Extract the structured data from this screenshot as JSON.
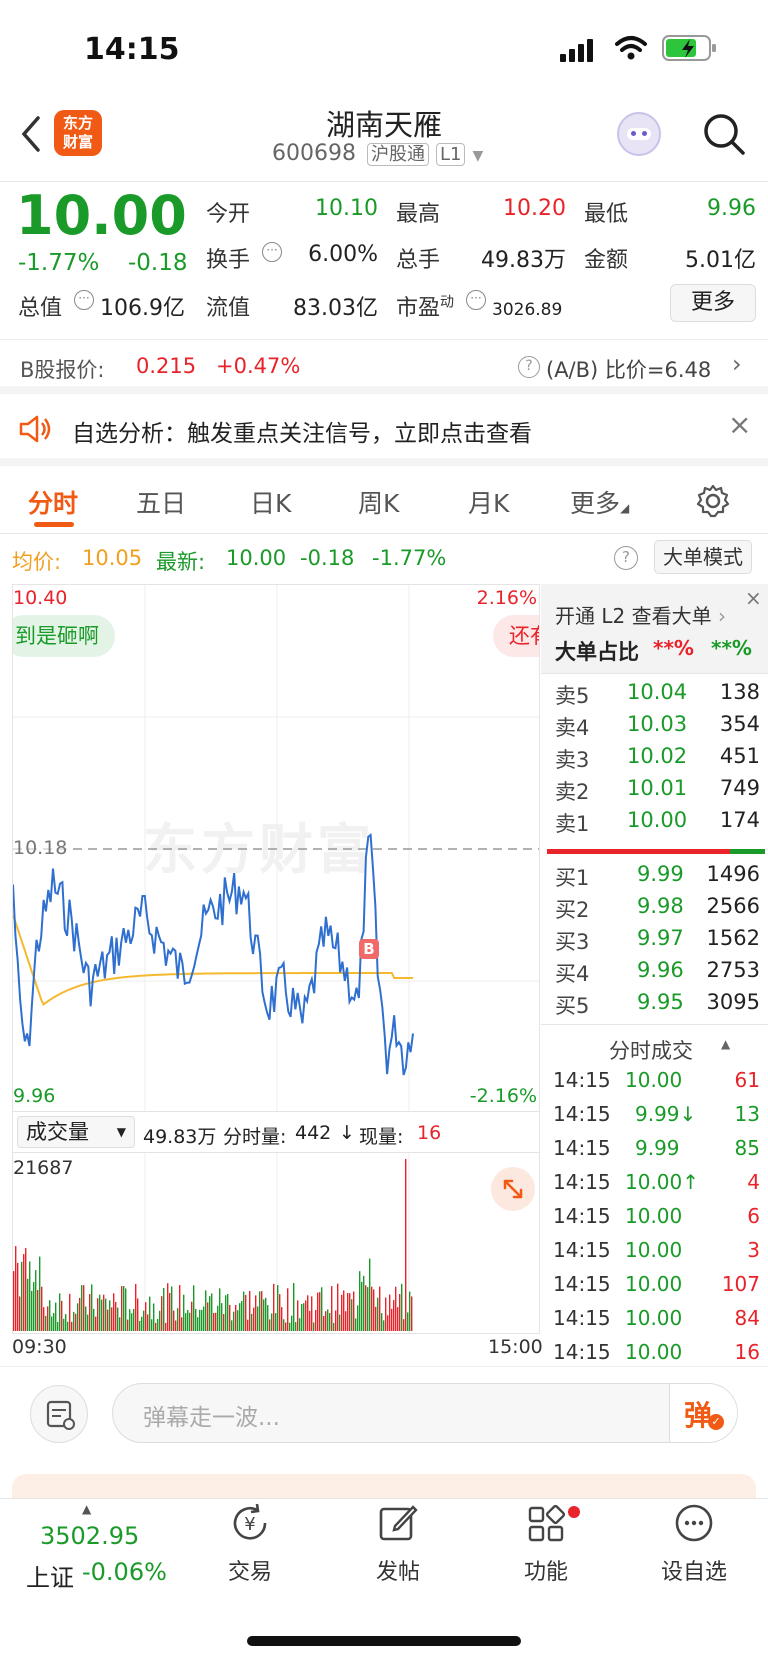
{
  "status": {
    "time": "14:15"
  },
  "header": {
    "title": "湖南天雁",
    "code": "600698",
    "tag": "沪股通",
    "level": "L1",
    "logo_line1": "东方",
    "logo_line2": "财富"
  },
  "quote": {
    "price": "10.00",
    "change_pct": "-1.77%",
    "change": "-0.18",
    "open_label": "今开",
    "open": "10.10",
    "high_label": "最高",
    "high": "10.20",
    "low_label": "最低",
    "low": "9.96",
    "turnover_label": "换手",
    "turnover": "6.00%",
    "volume_label": "总手",
    "volume": "49.83万",
    "amount_label": "金额",
    "amount": "5.01亿",
    "mktcap_label": "总值",
    "mktcap": "106.9亿",
    "float_label": "流值",
    "float": "83.03亿",
    "pe_label": "市盈",
    "pe_sup": "动",
    "pe": "3026.89",
    "more": "更多"
  },
  "bshare": {
    "label": "B股报价:",
    "price": "0.215",
    "change": "+0.47%",
    "ratio": "(A/B) 比价=6.48"
  },
  "alert": {
    "text": "自选分析：触发重点关注信号，立即点击查看"
  },
  "tabs": [
    "分时",
    "五日",
    "日K",
    "周K",
    "月K",
    "更多"
  ],
  "infobar": {
    "avg_label": "均价:",
    "avg": "10.05",
    "latest_label": "最新:",
    "latest": "10.00",
    "chg": "-0.18",
    "chg_pct": "-1.77%",
    "mode": "大单模式"
  },
  "chart": {
    "y_top": "10.40",
    "y_bottom": "9.96",
    "pct_top": "2.16%",
    "pct_bottom": "-2.16%",
    "ref": "10.18",
    "bubble1": "到是砸啊",
    "bubble2": "还有",
    "watermark": "东方财富",
    "buy_marker": "B"
  },
  "volbar": {
    "select": "成交量",
    "total": "49.83万",
    "minute_label": "分时量:",
    "minute": "442",
    "arrow": "↓",
    "now_label": "现量:",
    "now": "16",
    "max": "21687",
    "t_start": "09:30",
    "t_end": "15:00"
  },
  "l2": {
    "title": "开通 L2 查看大单",
    "ratio_label": "大单占比",
    "ratio1": "**%",
    "ratio2": "**%"
  },
  "asks": [
    {
      "label": "卖5",
      "price": "10.04",
      "vol": "138"
    },
    {
      "label": "卖4",
      "price": "10.03",
      "vol": "354"
    },
    {
      "label": "卖3",
      "price": "10.02",
      "vol": "451"
    },
    {
      "label": "卖2",
      "price": "10.01",
      "vol": "749"
    },
    {
      "label": "卖1",
      "price": "10.00",
      "vol": "174"
    }
  ],
  "bids": [
    {
      "label": "买1",
      "price": "9.99",
      "vol": "1496"
    },
    {
      "label": "买2",
      "price": "9.98",
      "vol": "2566"
    },
    {
      "label": "买3",
      "price": "9.97",
      "vol": "1562"
    },
    {
      "label": "买4",
      "price": "9.96",
      "vol": "2753"
    },
    {
      "label": "买5",
      "price": "9.95",
      "vol": "3095"
    }
  ],
  "trades_title": "分时成交",
  "trades": [
    {
      "t": "14:15",
      "p": "10.00",
      "v": "61",
      "pc": "green",
      "vc": "red"
    },
    {
      "t": "14:15",
      "p": "9.99↓",
      "v": "13",
      "pc": "green",
      "vc": "green"
    },
    {
      "t": "14:15",
      "p": "9.99",
      "v": "85",
      "pc": "green",
      "vc": "green"
    },
    {
      "t": "14:15",
      "p": "10.00↑",
      "v": "4",
      "pc": "green",
      "vc": "red"
    },
    {
      "t": "14:15",
      "p": "10.00",
      "v": "6",
      "pc": "green",
      "vc": "red"
    },
    {
      "t": "14:15",
      "p": "10.00",
      "v": "3",
      "pc": "green",
      "vc": "red"
    },
    {
      "t": "14:15",
      "p": "10.00",
      "v": "107",
      "pc": "green",
      "vc": "red"
    },
    {
      "t": "14:15",
      "p": "10.00",
      "v": "84",
      "pc": "green",
      "vc": "red"
    },
    {
      "t": "14:15",
      "p": "10.00",
      "v": "16",
      "pc": "green",
      "vc": "red"
    }
  ],
  "danmu": {
    "placeholder": "弹幕走一波...",
    "btn": "弹"
  },
  "nav": {
    "index_value": "3502.95",
    "index_name": "上证",
    "index_change": "-0.06%",
    "trade": "交易",
    "post": "发帖",
    "func": "功能",
    "watch": "设自选"
  },
  "colors": {
    "up": "#e8232a",
    "down": "#1a9a28",
    "accent": "#f05a14",
    "avg_line": "#f5b82e",
    "price_line": "#2f6fd0"
  }
}
